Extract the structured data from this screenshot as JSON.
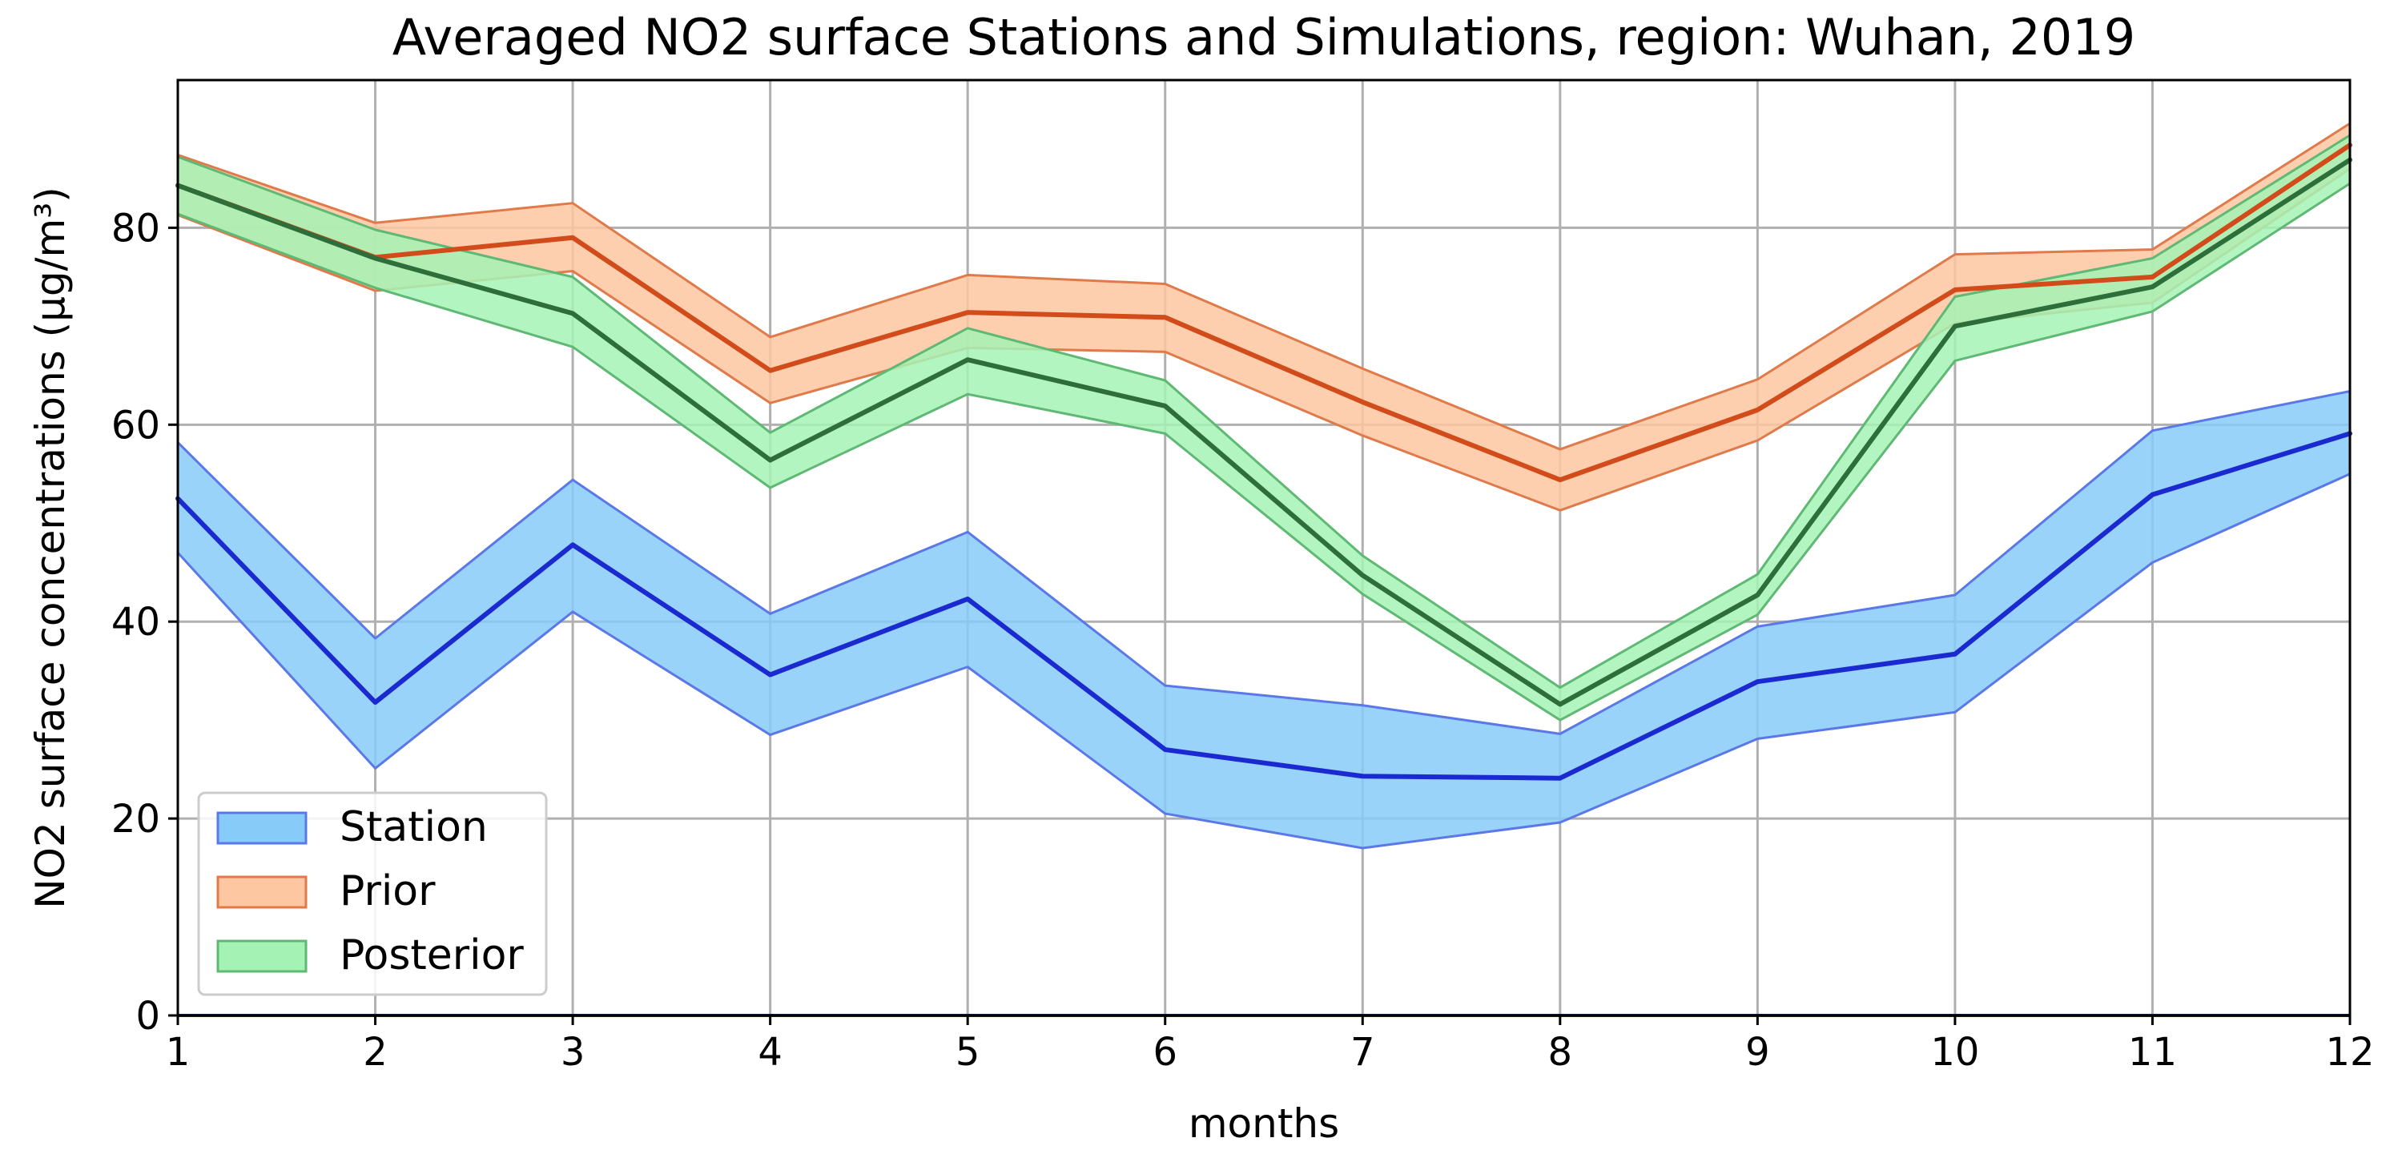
{
  "chart_data": {
    "type": "line",
    "title": "Averaged NO2 surface Stations and Simulations, region: Wuhan, 2019",
    "xlabel": "months",
    "ylabel": "NO2 surface concentrations (µg/m³)",
    "x": [
      1,
      2,
      3,
      4,
      5,
      6,
      7,
      8,
      9,
      10,
      11,
      12
    ],
    "xlim": [
      1,
      12
    ],
    "ylim": [
      0,
      95
    ],
    "yticks": [
      0,
      20,
      40,
      60,
      80
    ],
    "grid": true,
    "legend_position": "lower-left",
    "series": [
      {
        "name": "Station",
        "line_color": "#1a2ad0",
        "fill_color": "#87cbf9",
        "edge_color": "#5a78e8",
        "values": [
          52.5,
          31.8,
          47.8,
          34.6,
          42.3,
          27.0,
          24.3,
          24.1,
          33.9,
          36.7,
          52.9,
          59.1
        ],
        "upper": [
          58.2,
          38.3,
          54.4,
          40.8,
          49.1,
          33.5,
          31.5,
          28.6,
          39.5,
          42.7,
          59.4,
          63.4
        ],
        "lower": [
          47.0,
          25.1,
          41.0,
          28.5,
          35.4,
          20.5,
          17.0,
          19.6,
          28.1,
          30.8,
          46.0,
          55.0
        ]
      },
      {
        "name": "Prior",
        "line_color": "#d24b1a",
        "fill_color": "#fdc7a1",
        "edge_color": "#e07a4a",
        "values": [
          84.3,
          77.0,
          79.0,
          65.5,
          71.4,
          70.9,
          62.3,
          54.4,
          61.5,
          73.7,
          75.0,
          88.4
        ],
        "upper": [
          87.4,
          80.5,
          82.5,
          68.9,
          75.2,
          74.3,
          65.7,
          57.5,
          64.6,
          77.3,
          77.8,
          90.6
        ],
        "lower": [
          81.3,
          73.6,
          75.6,
          62.2,
          67.8,
          67.4,
          58.9,
          51.3,
          58.4,
          70.3,
          72.4,
          86.0
        ]
      },
      {
        "name": "Posterior",
        "line_color": "#2e6e3a",
        "fill_color": "#a4f3b5",
        "edge_color": "#5fb874",
        "values": [
          84.3,
          76.9,
          71.3,
          56.4,
          66.6,
          61.9,
          44.7,
          31.6,
          42.7,
          70.0,
          74.0,
          86.9
        ],
        "upper": [
          87.2,
          79.8,
          75.0,
          59.2,
          69.8,
          64.5,
          46.7,
          33.3,
          44.8,
          73.0,
          76.9,
          89.4
        ],
        "lower": [
          81.4,
          73.9,
          67.9,
          53.6,
          63.1,
          59.1,
          42.8,
          30.0,
          40.7,
          66.5,
          71.5,
          84.5
        ]
      }
    ]
  }
}
